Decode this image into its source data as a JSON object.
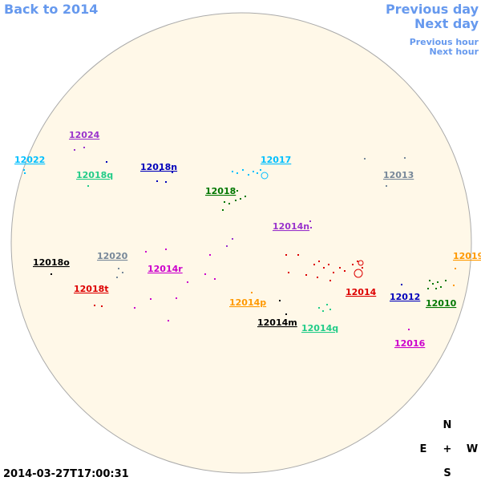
{
  "nav": {
    "back": "Back to 2014",
    "previous_day": "Previous day",
    "next_day": "Next day",
    "previous_hour": "Previous hour",
    "next_hour": "Next hour"
  },
  "regions": [
    {
      "label": "12024",
      "color": "#9933cc"
    },
    {
      "label": "12022",
      "color": "#00bfff"
    },
    {
      "label": "12018q",
      "color": "#22cc88"
    },
    {
      "label": "12018n",
      "color": "#0000bb"
    },
    {
      "label": "12017",
      "color": "#00bfff"
    },
    {
      "label": "12013",
      "color": "#778899"
    },
    {
      "label": "12018",
      "color": "#007700"
    },
    {
      "label": "12014n",
      "color": "#9933cc"
    },
    {
      "label": "12020",
      "color": "#778899"
    },
    {
      "label": "12018o",
      "color": "#000000"
    },
    {
      "label": "12014r",
      "color": "#cc00cc"
    },
    {
      "label": "12018t",
      "color": "#dd0000"
    },
    {
      "label": "12014p",
      "color": "#ff9900"
    },
    {
      "label": "12014",
      "color": "#dd0000"
    },
    {
      "label": "12012",
      "color": "#0000bb"
    },
    {
      "label": "12019",
      "color": "#ff9900"
    },
    {
      "label": "12010",
      "color": "#007700"
    },
    {
      "label": "12014m",
      "color": "#000000"
    },
    {
      "label": "12014q",
      "color": "#22cc88"
    },
    {
      "label": "12016",
      "color": "#cc00cc"
    }
  ],
  "compass": {
    "north": "N",
    "east": "E",
    "center": "+",
    "west": "W",
    "south": "S"
  },
  "timestamp": "2014-03-27T17:00:31"
}
